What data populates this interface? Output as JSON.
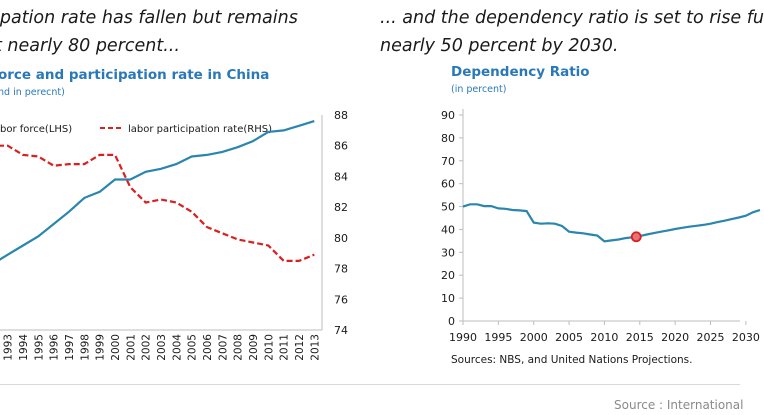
{
  "left": {
    "caption_line1": "ipation rate has fallen but remains",
    "caption_line2": "t nearly 80 percent...",
    "chart_title": "orce and participation rate in China",
    "chart_subtitle": "nd in perecnt)",
    "legend": {
      "lhs": "bor force(LHS)",
      "rhs": "labor participation rate(RHS)"
    },
    "colors": {
      "labor_force": "#2a86ad",
      "participation": "#d92020"
    }
  },
  "right": {
    "caption_line1": "... and the dependency ratio is set to rise fu",
    "caption_line2": "nearly 50 percent by 2030.",
    "chart_title": "Dependency Ratio",
    "chart_subtitle": "(in percent)",
    "sources": "Sources: NBS, and United Nations Projections.",
    "colors": {
      "line": "#2a86ad",
      "marker": "#d92020"
    }
  },
  "footer": {
    "source": "Source : International"
  },
  "chart_data": [
    {
      "type": "line",
      "title": "orce and participation rate in China",
      "categories": [
        "1993",
        "1994",
        "1995",
        "1996",
        "1997",
        "1998",
        "1999",
        "2000",
        "2001",
        "2002",
        "2003",
        "2004",
        "2005",
        "2006",
        "2007",
        "2008",
        "2009",
        "2010",
        "2011",
        "2012",
        "2013"
      ],
      "y_right_ticks": [
        "74",
        "76",
        "78",
        "80",
        "82",
        "84",
        "86",
        "88"
      ],
      "ylim_right": [
        74,
        88
      ],
      "grid": false,
      "legend": "top",
      "series": [
        {
          "name": "bor force(LHS)",
          "axis": "left",
          "style": "solid",
          "values": [
            78.9,
            79.5,
            80.1,
            80.9,
            81.7,
            82.6,
            83.0,
            83.8,
            83.8,
            84.3,
            84.5,
            84.8,
            85.3,
            85.4,
            85.6,
            85.9,
            86.3,
            86.9,
            87.0,
            87.3,
            87.6
          ]
        },
        {
          "name": "labor participation rate(RHS)",
          "axis": "right",
          "style": "dashed",
          "values": [
            86.0,
            85.4,
            85.3,
            84.7,
            84.8,
            84.8,
            85.4,
            85.4,
            83.3,
            82.3,
            82.5,
            82.3,
            81.7,
            80.7,
            80.3,
            79.9,
            79.7,
            79.5,
            78.5,
            78.5,
            78.9
          ]
        }
      ]
    },
    {
      "type": "line",
      "title": "Dependency Ratio",
      "ylabel": "(in percent)",
      "x_ticks": [
        1990,
        1995,
        2000,
        2005,
        2010,
        2015,
        2020,
        2025,
        2030
      ],
      "y_ticks": [
        0,
        10,
        20,
        30,
        40,
        50,
        60,
        70,
        80,
        90
      ],
      "xlim": [
        1990,
        2032
      ],
      "ylim": [
        0,
        90
      ],
      "grid": false,
      "series": [
        {
          "name": "",
          "x": [
            1990,
            1991,
            1992,
            1993,
            1994,
            1995,
            1996,
            1997,
            1998,
            1999,
            2000,
            2001,
            2002,
            2003,
            2004,
            2005,
            2006,
            2007,
            2008,
            2009,
            2010,
            2011,
            2012,
            2013,
            2014,
            2015,
            2016,
            2017,
            2018,
            2019,
            2020,
            2021,
            2022,
            2023,
            2024,
            2025,
            2026,
            2027,
            2028,
            2029,
            2030,
            2031,
            2032
          ],
          "y": [
            50.0,
            51.0,
            51.0,
            50.2,
            50.2,
            49.2,
            49.0,
            48.5,
            48.3,
            48.0,
            43.0,
            42.5,
            42.7,
            42.5,
            41.5,
            39.0,
            38.6,
            38.3,
            37.8,
            37.3,
            34.8,
            35.2,
            35.6,
            36.2,
            36.6,
            37.1,
            37.8,
            38.4,
            39.0,
            39.6,
            40.2,
            40.7,
            41.2,
            41.6,
            42.0,
            42.5,
            43.2,
            43.8,
            44.5,
            45.2,
            46.0,
            47.5,
            48.5
          ]
        }
      ],
      "highlight_point": {
        "x": 2014.5,
        "y": 36.8
      }
    }
  ]
}
